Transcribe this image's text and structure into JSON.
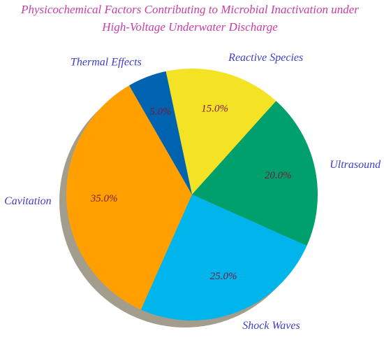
{
  "chart_data": {
    "type": "pie",
    "title": [
      "Physicochemical Factors Contributing to Microbial Inactivation under",
      "High-Voltage Underwater Discharge"
    ],
    "categories": [
      "Reactive Species",
      "Ultrasound",
      "Shock Waves",
      "Cavitation",
      "Thermal Effects"
    ],
    "values": [
      15,
      20,
      25,
      35,
      5
    ],
    "value_labels": [
      "15.0%",
      "20.0%",
      "25.0%",
      "35.0%",
      "5.0%"
    ],
    "colors": [
      "#f4e225",
      "#00a06c",
      "#00b4ec",
      "#ffa000",
      "#0063b0"
    ],
    "shadow": true
  }
}
